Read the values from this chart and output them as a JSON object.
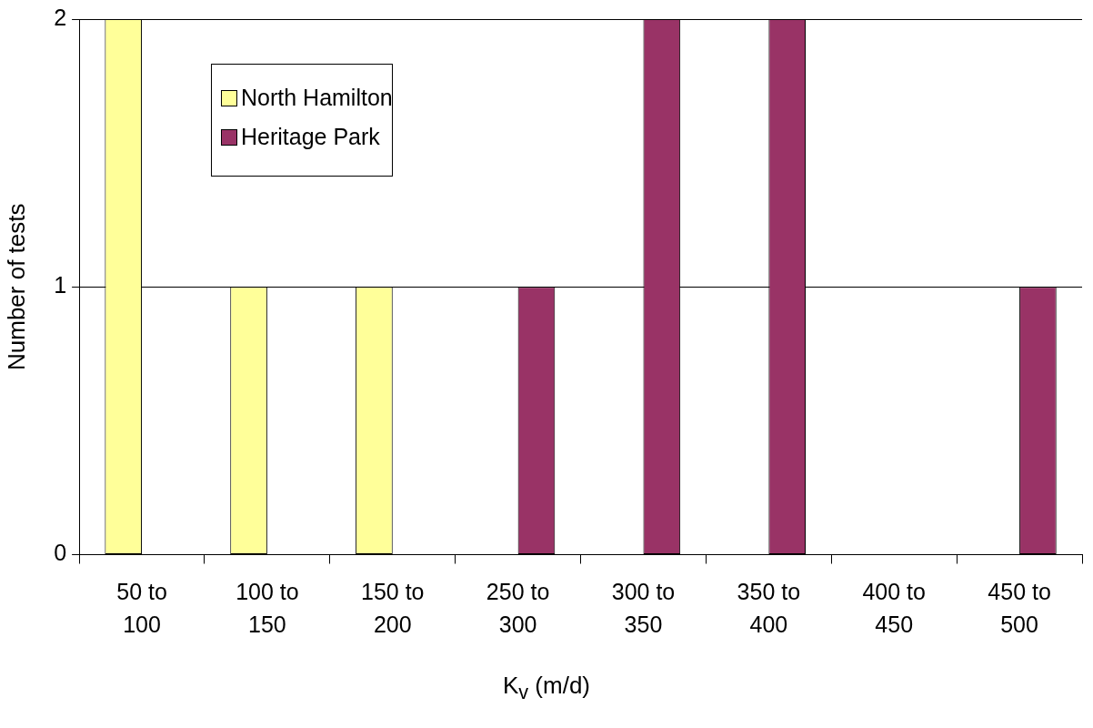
{
  "chart_data": {
    "type": "bar",
    "xlabel": "K$_{v}$ (m/d)",
    "ylabel": "Number of tests",
    "categories": [
      "50 to 100",
      "100 to 150",
      "150 to 200",
      "250 to 300",
      "300 to 350",
      "350 to 400",
      "400 to 450",
      "450 to 500"
    ],
    "series": [
      {
        "name": "North Hamilton",
        "color": "#ffff99",
        "values": [
          2,
          1,
          1,
          0,
          0,
          0,
          0,
          0
        ]
      },
      {
        "name": "Heritage Park",
        "color": "#993366",
        "values": [
          0,
          0,
          0,
          1,
          2,
          2,
          0,
          1
        ]
      }
    ],
    "ylim": [
      0,
      2
    ],
    "yticks": [
      0,
      1,
      2
    ],
    "grid": "y",
    "legend": "top left"
  }
}
